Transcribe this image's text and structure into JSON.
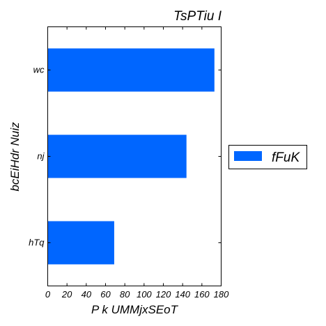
{
  "chart_data": {
    "type": "bar",
    "orientation": "horizontal",
    "title": "TsPTiu  I",
    "xlabel": "P k  UMMjxSEoT",
    "ylabel": "bcEiHdr Nuiz",
    "categories": [
      "wc",
      "nj",
      "hTq"
    ],
    "series": [
      {
        "name": "fFuK",
        "values": [
          173,
          144,
          69
        ],
        "color": "#0066ff"
      }
    ],
    "xlim": [
      0,
      180
    ],
    "xticks": [
      0,
      20,
      40,
      60,
      80,
      100,
      120,
      140,
      160,
      180
    ],
    "grid": false,
    "legend_position": "right"
  }
}
